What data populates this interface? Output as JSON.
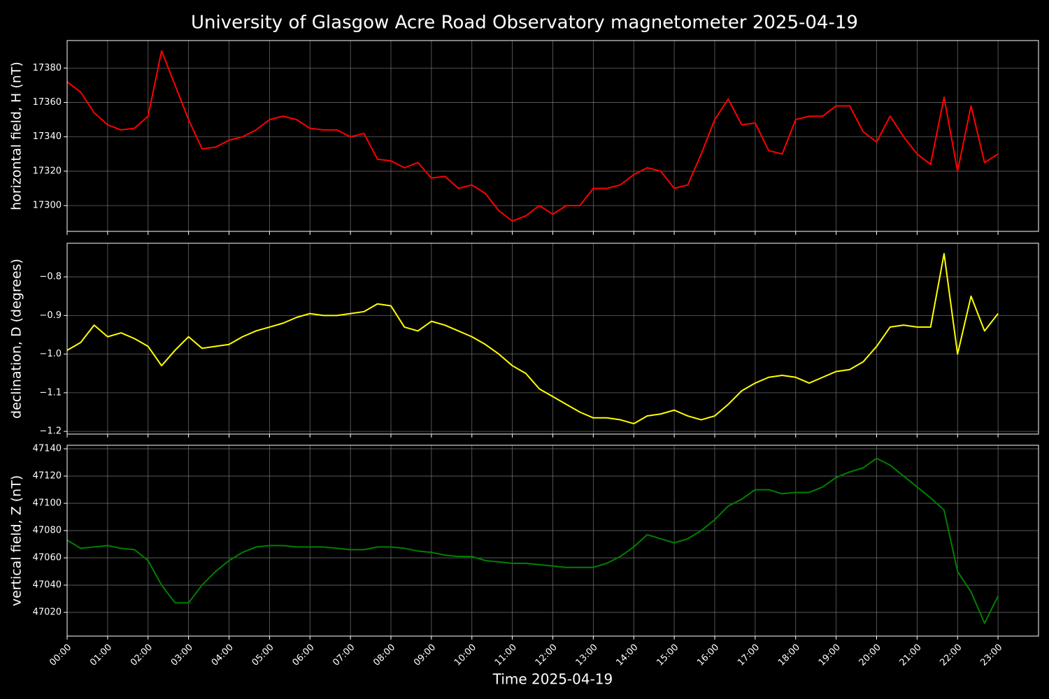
{
  "title": "University of Glasgow Acre Road Observatory magnetometer 2025-04-19",
  "chart_data": [
    {
      "type": "line",
      "ylabel": "horizontal field, H (nT)",
      "color": "#ff0000",
      "grid": true,
      "x": [
        "00:00",
        "00:20",
        "00:40",
        "01:00",
        "01:20",
        "01:40",
        "02:00",
        "02:20",
        "02:40",
        "03:00",
        "03:20",
        "03:40",
        "04:00",
        "04:20",
        "04:40",
        "05:00",
        "05:20",
        "05:40",
        "06:00",
        "06:20",
        "06:40",
        "07:00",
        "07:20",
        "07:40",
        "08:00",
        "08:20",
        "08:40",
        "09:00",
        "09:20",
        "09:40",
        "10:00",
        "10:20",
        "10:40",
        "11:00",
        "11:20",
        "11:40",
        "12:00",
        "12:20",
        "12:40",
        "13:00",
        "13:20",
        "13:40",
        "14:00",
        "14:20",
        "14:40",
        "15:00",
        "15:20",
        "15:40",
        "16:00",
        "16:20",
        "16:40",
        "17:00",
        "17:20",
        "17:40",
        "18:00",
        "18:20",
        "18:40",
        "19:00",
        "19:20",
        "19:40",
        "20:00",
        "20:20",
        "20:40",
        "21:00",
        "21:20",
        "21:40",
        "22:00",
        "22:20",
        "22:40",
        "23:00"
      ],
      "values": [
        17372,
        17366,
        17354,
        17347,
        17344,
        17345,
        17352,
        17390,
        17370,
        17350,
        17333,
        17334,
        17338,
        17340,
        17344,
        17350,
        17352,
        17350,
        17345,
        17344,
        17344,
        17340,
        17342,
        17327,
        17326,
        17322,
        17325,
        17316,
        17317,
        17310,
        17312,
        17307,
        17297,
        17291,
        17294,
        17300,
        17295,
        17300,
        17300,
        17310,
        17310,
        17312,
        17318,
        17322,
        17320,
        17310,
        17312,
        17330,
        17350,
        17362,
        17347,
        17348,
        17332,
        17330,
        17350,
        17352,
        17352,
        17358,
        17358,
        17343,
        17337,
        17352,
        17340,
        17330,
        17324,
        17363,
        17320,
        17358,
        17325,
        17330
      ],
      "xlim": [
        "00:00",
        "24:00"
      ],
      "xticks": [
        "00:00",
        "01:00",
        "02:00",
        "03:00",
        "04:00",
        "05:00",
        "06:00",
        "07:00",
        "08:00",
        "09:00",
        "10:00",
        "11:00",
        "12:00",
        "13:00",
        "14:00",
        "15:00",
        "16:00",
        "17:00",
        "18:00",
        "19:00",
        "20:00",
        "21:00",
        "22:00",
        "23:00"
      ],
      "ylim": [
        17285,
        17396
      ],
      "yticks": [
        17300,
        17320,
        17340,
        17360,
        17380
      ]
    },
    {
      "type": "line",
      "ylabel": "declination, D (degrees)",
      "color": "#ffff00",
      "grid": true,
      "x": [
        "00:00",
        "00:20",
        "00:40",
        "01:00",
        "01:20",
        "01:40",
        "02:00",
        "02:20",
        "02:40",
        "03:00",
        "03:20",
        "03:40",
        "04:00",
        "04:20",
        "04:40",
        "05:00",
        "05:20",
        "05:40",
        "06:00",
        "06:20",
        "06:40",
        "07:00",
        "07:20",
        "07:40",
        "08:00",
        "08:20",
        "08:40",
        "09:00",
        "09:20",
        "09:40",
        "10:00",
        "10:20",
        "10:40",
        "11:00",
        "11:20",
        "11:40",
        "12:00",
        "12:20",
        "12:40",
        "13:00",
        "13:20",
        "13:40",
        "14:00",
        "14:20",
        "14:40",
        "15:00",
        "15:20",
        "15:40",
        "16:00",
        "16:20",
        "16:40",
        "17:00",
        "17:20",
        "17:40",
        "18:00",
        "18:20",
        "18:40",
        "19:00",
        "19:20",
        "19:40",
        "20:00",
        "20:20",
        "20:40",
        "21:00",
        "21:20",
        "21:40",
        "22:00",
        "22:20",
        "22:40",
        "23:00"
      ],
      "values": [
        -0.99,
        -0.97,
        -0.925,
        -0.955,
        -0.945,
        -0.96,
        -0.98,
        -1.03,
        -0.99,
        -0.955,
        -0.985,
        -0.98,
        -0.975,
        -0.955,
        -0.94,
        -0.93,
        -0.92,
        -0.905,
        -0.895,
        -0.9,
        -0.9,
        -0.895,
        -0.89,
        -0.87,
        -0.875,
        -0.93,
        -0.94,
        -0.915,
        -0.925,
        -0.94,
        -0.955,
        -0.975,
        -1.0,
        -1.03,
        -1.05,
        -1.09,
        -1.11,
        -1.13,
        -1.15,
        -1.165,
        -1.165,
        -1.17,
        -1.18,
        -1.16,
        -1.155,
        -1.145,
        -1.16,
        -1.17,
        -1.16,
        -1.13,
        -1.095,
        -1.075,
        -1.06,
        -1.055,
        -1.06,
        -1.075,
        -1.06,
        -1.045,
        -1.04,
        -1.02,
        -0.98,
        -0.93,
        -0.925,
        -0.93,
        -0.93,
        -0.74,
        -1.0,
        -0.85,
        -0.94,
        -0.895
      ],
      "xlim": [
        "00:00",
        "24:00"
      ],
      "xticks": [
        "00:00",
        "01:00",
        "02:00",
        "03:00",
        "04:00",
        "05:00",
        "06:00",
        "07:00",
        "08:00",
        "09:00",
        "10:00",
        "11:00",
        "12:00",
        "13:00",
        "14:00",
        "15:00",
        "16:00",
        "17:00",
        "18:00",
        "19:00",
        "20:00",
        "21:00",
        "22:00",
        "23:00"
      ],
      "ylim": [
        -1.207,
        -0.713
      ],
      "yticks": [
        {
          "value": -1.2,
          "label": "−1.2"
        },
        {
          "value": -1.1,
          "label": "−1.1"
        },
        {
          "value": -1.0,
          "label": "−1.0"
        },
        {
          "value": -0.9,
          "label": "−0.9"
        },
        {
          "value": -0.8,
          "label": "−0.8"
        }
      ]
    },
    {
      "type": "line",
      "ylabel": "vertical field, Z (nT)",
      "xlabel": "Time 2025-04-19",
      "color": "#008000",
      "grid": true,
      "x": [
        "00:00",
        "00:20",
        "00:40",
        "01:00",
        "01:20",
        "01:40",
        "02:00",
        "02:20",
        "02:40",
        "03:00",
        "03:20",
        "03:40",
        "04:00",
        "04:20",
        "04:40",
        "05:00",
        "05:20",
        "05:40",
        "06:00",
        "06:20",
        "06:40",
        "07:00",
        "07:20",
        "07:40",
        "08:00",
        "08:20",
        "08:40",
        "09:00",
        "09:20",
        "09:40",
        "10:00",
        "10:20",
        "10:40",
        "11:00",
        "11:20",
        "11:40",
        "12:00",
        "12:20",
        "12:40",
        "13:00",
        "13:20",
        "13:40",
        "14:00",
        "14:20",
        "14:40",
        "15:00",
        "15:20",
        "15:40",
        "16:00",
        "16:20",
        "16:40",
        "17:00",
        "17:20",
        "17:40",
        "18:00",
        "18:20",
        "18:40",
        "19:00",
        "19:20",
        "19:40",
        "20:00",
        "20:20",
        "20:40",
        "21:00",
        "21:20",
        "21:40",
        "22:00",
        "22:20",
        "22:40",
        "23:00"
      ],
      "values": [
        47073,
        47067,
        47068,
        47069,
        47067,
        47066,
        47058,
        47040,
        47027,
        47027,
        47040,
        47050,
        47058,
        47064,
        47068,
        47069,
        47069,
        47068,
        47068,
        47068,
        47067,
        47066,
        47066,
        47068,
        47068,
        47067,
        47065,
        47064,
        47062,
        47061,
        47061,
        47058,
        47057,
        47056,
        47056,
        47055,
        47054,
        47053,
        47053,
        47053,
        47056,
        47061,
        47068,
        47077,
        47074,
        47071,
        47074,
        47080,
        47088,
        47098,
        47103,
        47110,
        47110,
        47107,
        47108,
        47108,
        47112,
        47119,
        47123,
        47126,
        47133,
        47128,
        47120,
        47112,
        47104,
        47095,
        47050,
        47035,
        47012,
        47032
      ],
      "xlim": [
        "00:00",
        "24:00"
      ],
      "xticks": [
        "00:00",
        "01:00",
        "02:00",
        "03:00",
        "04:00",
        "05:00",
        "06:00",
        "07:00",
        "08:00",
        "09:00",
        "10:00",
        "11:00",
        "12:00",
        "13:00",
        "14:00",
        "15:00",
        "16:00",
        "17:00",
        "18:00",
        "19:00",
        "20:00",
        "21:00",
        "22:00",
        "23:00"
      ],
      "ylim": [
        47002.6,
        47142.6
      ],
      "yticks": [
        47020,
        47040,
        47060,
        47080,
        47100,
        47120,
        47140
      ]
    }
  ]
}
